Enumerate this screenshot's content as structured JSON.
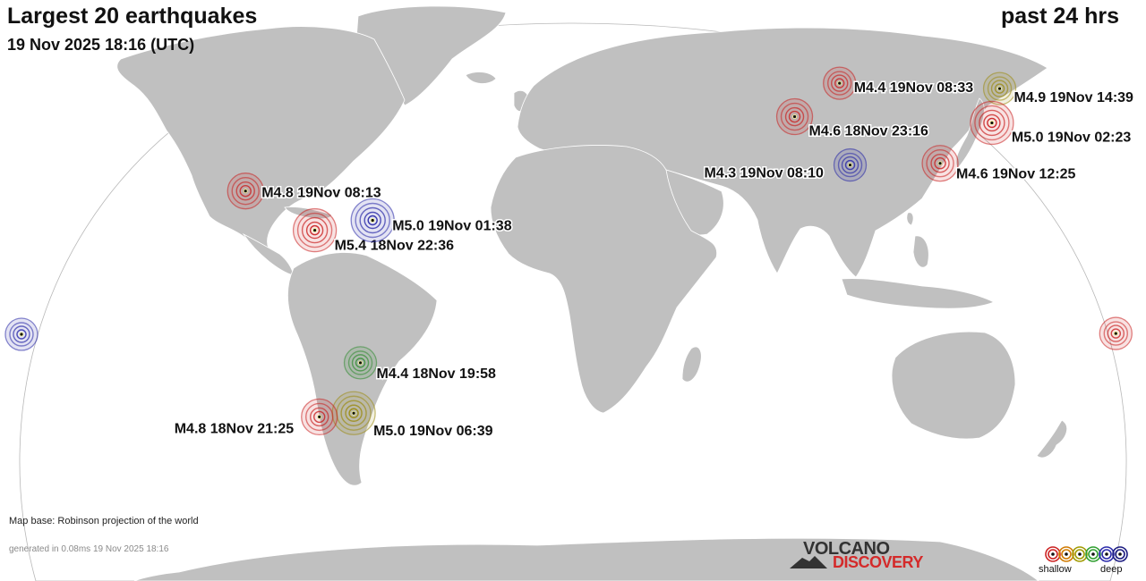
{
  "header": {
    "title": "Largest 20 earthquakes",
    "datetime": "19 Nov 2025 18:16 (UTC)",
    "period": "past 24 hrs"
  },
  "footer": {
    "map_base": "Map base: Robinson projection of the world",
    "generated": "generated in 0.08ms 19 Nov 2025 18:16"
  },
  "logo": {
    "line1": "VOLCANO",
    "line2": "DISCOVERY"
  },
  "legend": {
    "shallow_label": "shallow",
    "deep_label": "deep",
    "colors": [
      "#cc2222",
      "#d07a00",
      "#a09a00",
      "#2f9e2f",
      "#2a2aaa",
      "#1a1a80"
    ]
  },
  "colors": {
    "land": "#c0c0c0",
    "ocean": "#ffffff",
    "shallow": "#c81e1e",
    "intermediate": "#9a8a10",
    "mid_deep": "#2e8b2e",
    "deep": "#2626a6"
  },
  "earthquakes": [
    {
      "label": "M4.8 19Nov 08:13",
      "lon": -105.6,
      "lat": 17.6,
      "depth_class": "shallow",
      "size": 2
    },
    {
      "label": "M5.4 18Nov 22:36",
      "lon": -82.8,
      "lat": 8.1,
      "depth_class": "shallow",
      "size": 3
    },
    {
      "label": "M5.0 19Nov 01:38",
      "lon": -64.1,
      "lat": 10.5,
      "depth_class": "deep",
      "size": 3
    },
    {
      "label": "M4.4 18Nov 19:58",
      "lon": -68.5,
      "lat": -24.0,
      "depth_class": "mid_deep",
      "size": 1
    },
    {
      "label": "M5.0 19Nov 06:39",
      "lon": -71.4,
      "lat": -36.2,
      "depth_class": "intermediate",
      "size": 3
    },
    {
      "label": "M4.8 18Nov 21:25",
      "lon": -82.8,
      "lat": -37.1,
      "depth_class": "shallow",
      "size": 2
    },
    {
      "label": "M4.4 19Nov 08:33",
      "lon": 89.5,
      "lat": 43.7,
      "depth_class": "shallow",
      "size": 1
    },
    {
      "label": "M4.6 18Nov 23:16",
      "lon": 73.9,
      "lat": 35.6,
      "depth_class": "shallow",
      "size": 2
    },
    {
      "label": "M4.3 19Nov 08:10",
      "lon": 91.3,
      "lat": 23.9,
      "depth_class": "deep",
      "size": 1
    },
    {
      "label": "M4.9 19Nov 14:39",
      "lon": 142.5,
      "lat": 42.4,
      "depth_class": "intermediate",
      "size": 1
    },
    {
      "label": "M5.0 19Nov 02:23",
      "lon": 138.7,
      "lat": 34.1,
      "depth_class": "shallow",
      "size": 3
    },
    {
      "label": "M4.6 19Nov 12:25",
      "lon": 120.7,
      "lat": 24.3,
      "depth_class": "shallow",
      "size": 2
    },
    {
      "label": "",
      "lon": 177.3,
      "lat": -16.9,
      "depth_class": "shallow",
      "size": 1
    },
    {
      "label": "",
      "lon": -178.4,
      "lat": -17.1,
      "depth_class": "deep",
      "size": 1
    }
  ]
}
